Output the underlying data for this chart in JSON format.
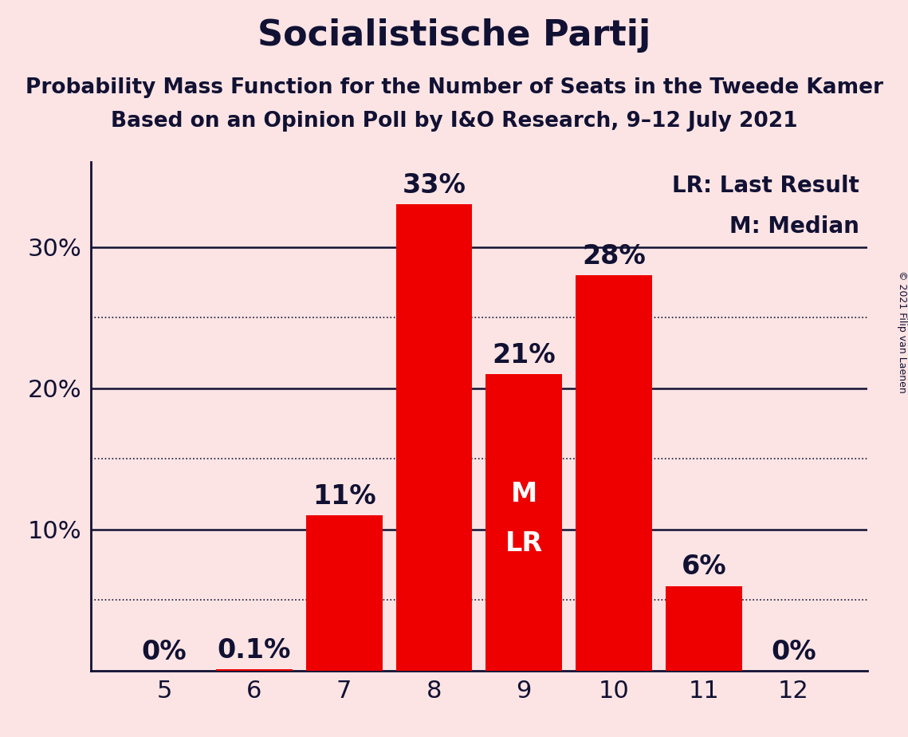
{
  "title": "Socialistische Partij",
  "subtitle1": "Probability Mass Function for the Number of Seats in the Tweede Kamer",
  "subtitle2": "Based on an Opinion Poll by I&O Research, 9–12 July 2021",
  "copyright": "© 2021 Filip van Laenen",
  "categories": [
    5,
    6,
    7,
    8,
    9,
    10,
    11,
    12
  ],
  "values": [
    0.0,
    0.1,
    11.0,
    33.0,
    21.0,
    28.0,
    6.0,
    0.0
  ],
  "labels": [
    "0%",
    "0.1%",
    "11%",
    "33%",
    "21%",
    "28%",
    "6%",
    "0%"
  ],
  "bar_color": "#ee0000",
  "bg_color": "#fce4e4",
  "text_color": "#111133",
  "label_color_outside": "#111133",
  "label_color_inside": "#ffffff",
  "median_seat": 9,
  "lr_seat": 9,
  "legend_lr": "LR: Last Result",
  "legend_m": "M: Median",
  "ylim": [
    0,
    36
  ],
  "solid_yticks": [
    10,
    20,
    30
  ],
  "dotted_yticks": [
    5,
    15,
    25
  ],
  "ytick_labels": {
    "10": "10%",
    "20": "20%",
    "30": "30%"
  },
  "title_fontsize": 32,
  "subtitle_fontsize": 19,
  "axis_tick_fontsize": 22,
  "bar_label_fontsize": 24,
  "legend_fontsize": 20,
  "inside_label_fontsize": 24,
  "copyright_fontsize": 9
}
